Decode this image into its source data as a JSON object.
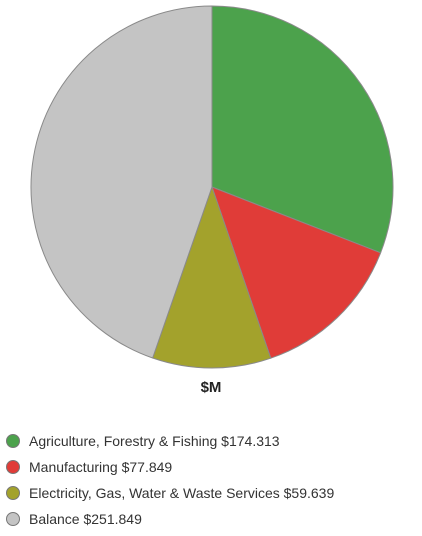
{
  "chart_data": {
    "type": "pie",
    "title": "",
    "unit_label": "$M",
    "legend_position": "bottom",
    "slices": [
      {
        "label": "Agriculture, Forestry & Fishing $174.313",
        "category": "Agriculture, Forestry & Fishing",
        "value": 174.313,
        "color": "#4ca24c"
      },
      {
        "label": "Manufacturing $77.849",
        "category": "Manufacturing",
        "value": 77.849,
        "color": "#e03c38"
      },
      {
        "label": "Electricity, Gas, Water & Waste Services $59.639",
        "category": "Electricity, Gas, Water & Waste Services",
        "value": 59.639,
        "color": "#a3a22c"
      },
      {
        "label": "Balance $251.849",
        "category": "Balance",
        "value": 251.849,
        "color": "#c4c4c4"
      }
    ]
  }
}
